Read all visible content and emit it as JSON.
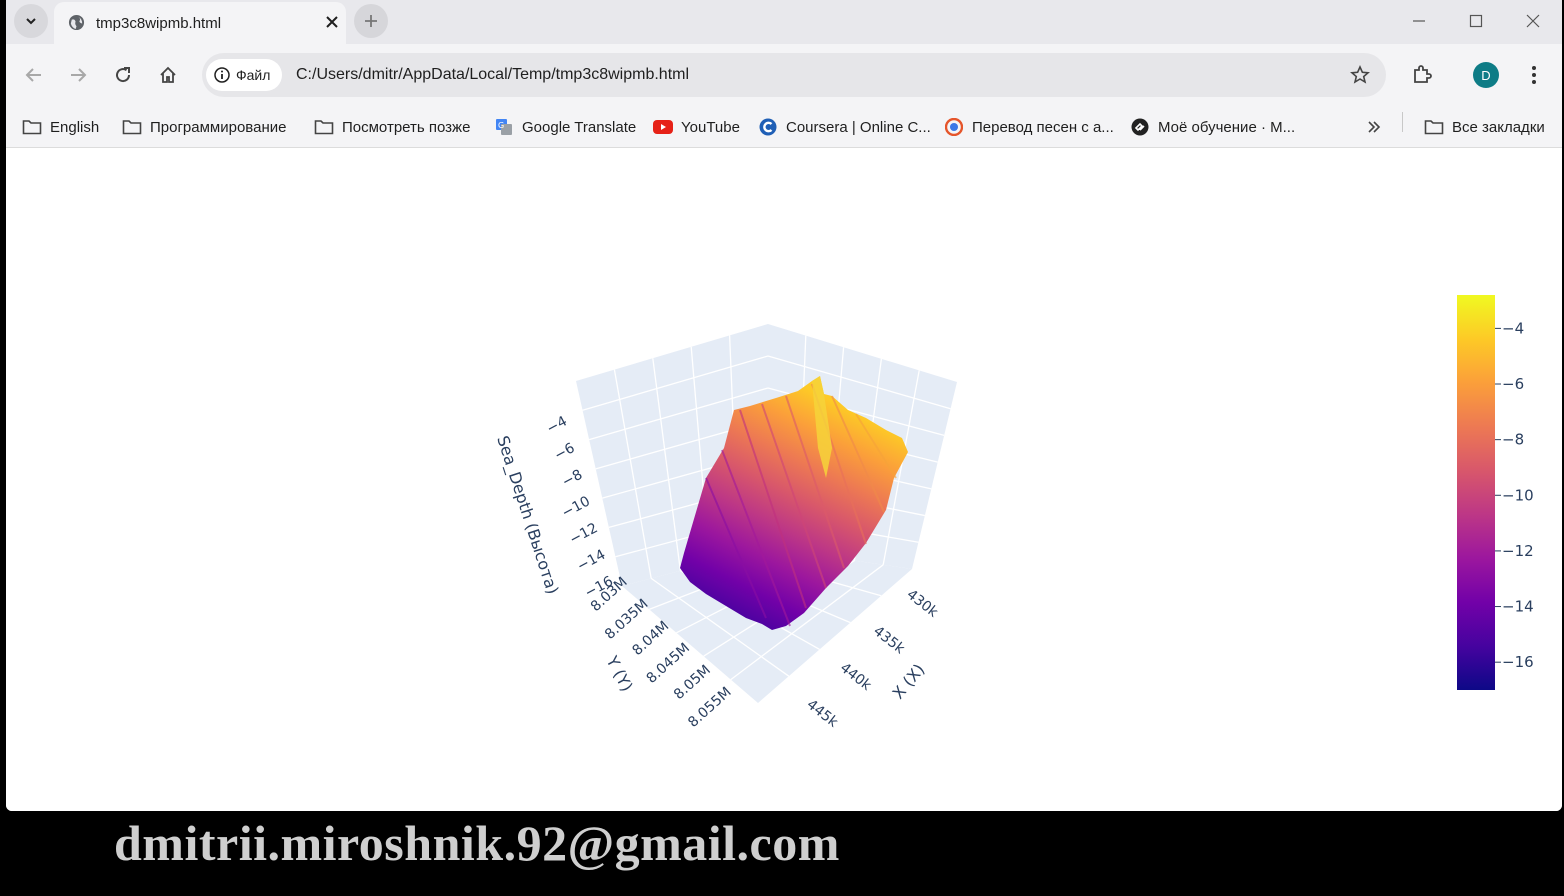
{
  "browser": {
    "tab_title": "tmp3c8wipmb.html",
    "site_chip_label": "Файл",
    "url": "C:/Users/dmitr/AppData/Local/Temp/tmp3c8wipmb.html",
    "avatar_letter": "D",
    "bookmarks": [
      {
        "label": "English",
        "icon": "folder-icon"
      },
      {
        "label": "Программирование",
        "icon": "folder-icon"
      },
      {
        "label": "Посмотреть позже",
        "icon": "folder-icon"
      },
      {
        "label": "Google Translate",
        "icon": "google-translate-icon"
      },
      {
        "label": "YouTube",
        "icon": "youtube-icon"
      },
      {
        "label": "Coursera | Online C...",
        "icon": "coursera-icon"
      },
      {
        "label": "Перевод песен с а...",
        "icon": "lyrics-site-icon"
      },
      {
        "label": "Моё обучение · М...",
        "icon": "learning-site-icon"
      }
    ],
    "all_bookmarks_label": "Все закладки"
  },
  "chart_data": {
    "type": "surface",
    "title": "",
    "xlabel": "X (X)",
    "ylabel": "Y (Y)",
    "zlabel": "Sea_Depth (Высота)",
    "x_ticks": [
      "430k",
      "435k",
      "440k",
      "445k"
    ],
    "y_ticks": [
      "8.03M",
      "8.035M",
      "8.04M",
      "8.045M",
      "8.05M",
      "8.055M"
    ],
    "z_ticks": [
      "−4",
      "−6",
      "−8",
      "−10",
      "−12",
      "−14",
      "−16"
    ],
    "z_range": [
      -17,
      -2.8
    ],
    "colorscale": "plasma",
    "colorbar_ticks": [
      "−4",
      "−6",
      "−8",
      "−10",
      "−12",
      "−14",
      "−16"
    ],
    "colorbar_tick_values": [
      -4,
      -6,
      -8,
      -10,
      -12,
      -14,
      -16
    ],
    "colors": [
      "#0d0887",
      "#46039f",
      "#7201a8",
      "#9c179e",
      "#bd3786",
      "#d8576b",
      "#ed7953",
      "#fb9f3a",
      "#fdca26",
      "#f0f921"
    ]
  },
  "watermark": "dmitrii.miroshnik.92@gmail.com"
}
